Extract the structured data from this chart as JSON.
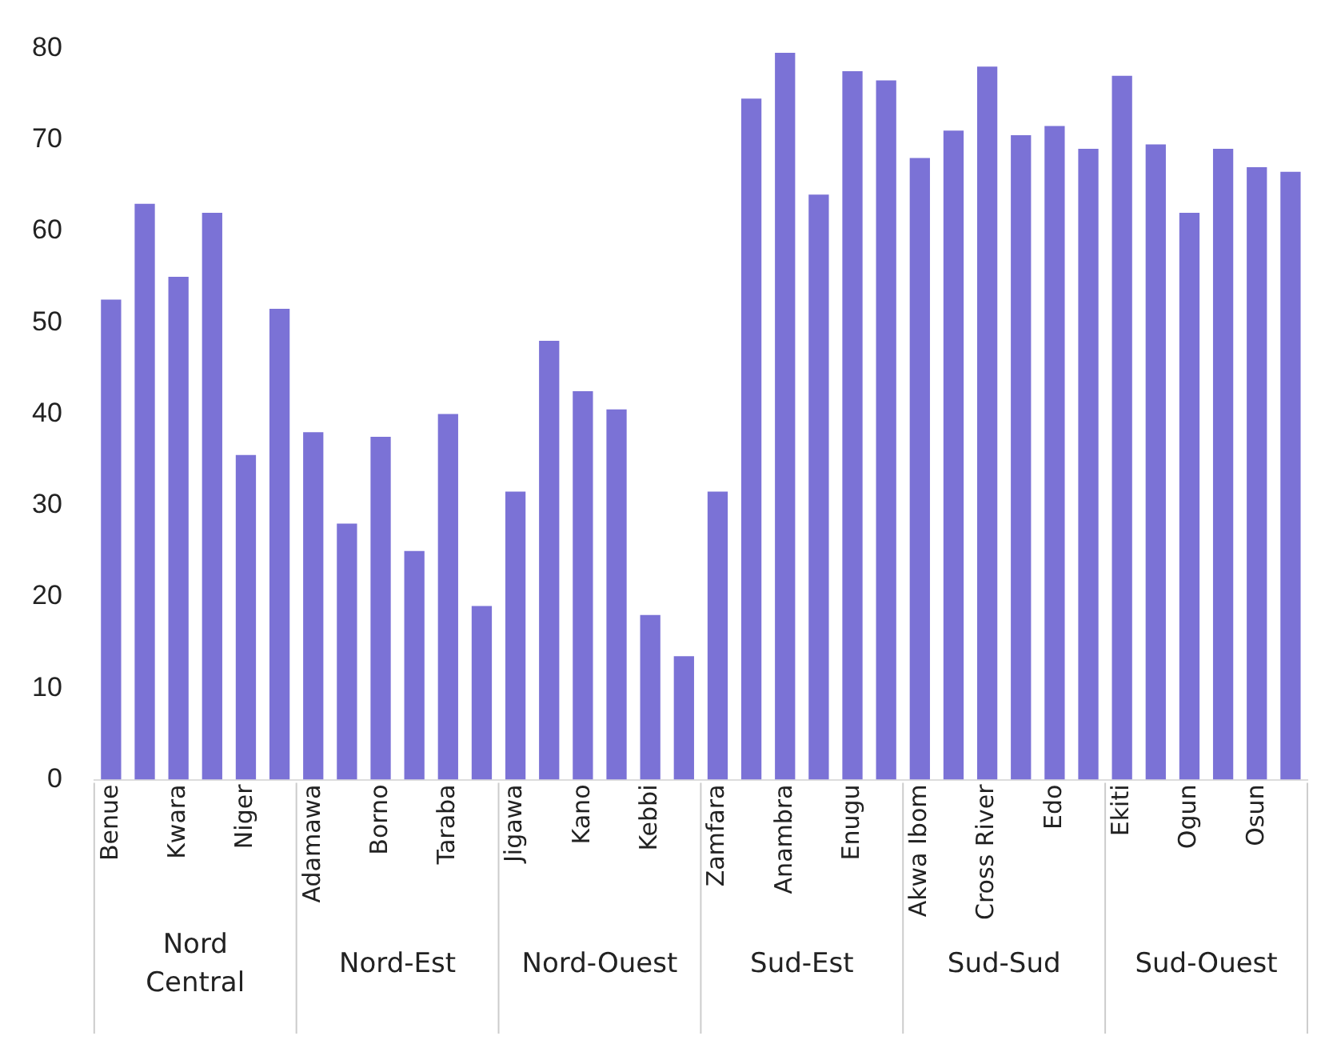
{
  "chart_data": {
    "type": "bar",
    "categories": [
      "Benue",
      null,
      "Kwara",
      null,
      "Niger",
      null,
      "Adamawa",
      null,
      "Borno",
      null,
      "Taraba",
      null,
      "Jigawa",
      null,
      "Kano",
      null,
      "Kebbi",
      null,
      "Zamfara",
      null,
      "Anambra",
      null,
      "Enugu",
      null,
      "Akwa Ibom",
      null,
      "Cross River",
      null,
      "Edo",
      null,
      "Ekiti",
      null,
      "Ogun",
      null,
      "Osun",
      null
    ],
    "values": [
      52.5,
      63,
      55,
      62,
      35.5,
      51.5,
      38,
      28,
      37.5,
      25,
      40,
      19,
      31.5,
      48,
      42.5,
      40.5,
      18,
      13.5,
      31.5,
      74.5,
      79.5,
      64,
      77.5,
      76.5,
      68,
      71,
      78,
      70.5,
      71.5,
      69,
      77,
      69.5,
      62,
      69,
      67,
      66.5
    ],
    "color": "#7b72d6",
    "ylim": [
      0,
      80
    ],
    "yticks": [
      0,
      10,
      20,
      30,
      40,
      50,
      60,
      70,
      80
    ],
    "grid": false,
    "annotations": [
      "Nord Central",
      "Nord-Est",
      "Nord-Ouest",
      "Sud-Est",
      "Sud-Sud",
      "Sud-Ouest"
    ]
  }
}
